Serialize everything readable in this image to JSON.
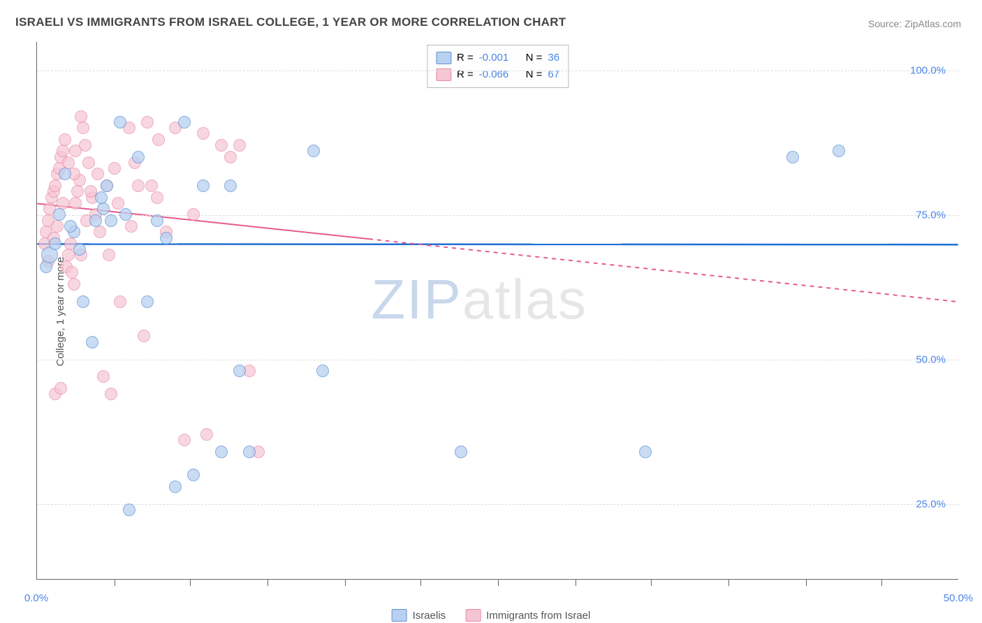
{
  "title": "ISRAELI VS IMMIGRANTS FROM ISRAEL COLLEGE, 1 YEAR OR MORE CORRELATION CHART",
  "source_label": "Source: ",
  "source_name": "ZipAtlas.com",
  "ylabel": "College, 1 year or more",
  "watermark_a": "ZIP",
  "watermark_b": "atlas",
  "chart": {
    "type": "scatter",
    "background_color": "#ffffff",
    "grid_color": "#dddddd",
    "grid_dash": "4,4",
    "xlim": [
      0,
      50
    ],
    "ylim": [
      12,
      105
    ],
    "x_ticks": [
      0,
      50
    ],
    "x_tick_labels": [
      "0.0%",
      "50.0%"
    ],
    "x_minor_ticks": [
      4.2,
      8.3,
      12.5,
      16.7,
      20.8,
      25.0,
      29.2,
      33.3,
      37.5,
      41.7,
      45.8
    ],
    "y_ticks": [
      25,
      50,
      75,
      100
    ],
    "y_tick_labels": [
      "25.0%",
      "50.0%",
      "75.0%",
      "100.0%"
    ],
    "point_radius": 9,
    "point_stroke_width": 1.5,
    "series": [
      {
        "key": "israelis",
        "label": "Israelis",
        "fill": "#b9d1f0",
        "stroke": "#5e93d6",
        "opacity": 0.75,
        "r_value": "-0.001",
        "n_value": "36",
        "trend": {
          "y_at_xmin": 70.0,
          "y_at_xmax": 69.9,
          "color": "#1f6fd4",
          "width": 2.5,
          "dash_after_x": null
        },
        "points": [
          {
            "x": 0.5,
            "y": 66
          },
          {
            "x": 0.7,
            "y": 68,
            "r": 12
          },
          {
            "x": 1.0,
            "y": 70
          },
          {
            "x": 1.2,
            "y": 75
          },
          {
            "x": 1.5,
            "y": 82
          },
          {
            "x": 2.0,
            "y": 72
          },
          {
            "x": 2.3,
            "y": 69
          },
          {
            "x": 2.5,
            "y": 60
          },
          {
            "x": 3.0,
            "y": 53
          },
          {
            "x": 3.2,
            "y": 74
          },
          {
            "x": 3.5,
            "y": 78
          },
          {
            "x": 3.8,
            "y": 80
          },
          {
            "x": 4.0,
            "y": 74
          },
          {
            "x": 4.5,
            "y": 91
          },
          {
            "x": 4.8,
            "y": 75
          },
          {
            "x": 5.0,
            "y": 24
          },
          {
            "x": 5.5,
            "y": 85
          },
          {
            "x": 6.0,
            "y": 60
          },
          {
            "x": 6.5,
            "y": 74
          },
          {
            "x": 7.0,
            "y": 71
          },
          {
            "x": 7.5,
            "y": 28
          },
          {
            "x": 8.0,
            "y": 91
          },
          {
            "x": 8.5,
            "y": 30
          },
          {
            "x": 9.0,
            "y": 80
          },
          {
            "x": 10.0,
            "y": 34
          },
          {
            "x": 10.5,
            "y": 80
          },
          {
            "x": 11.0,
            "y": 48
          },
          {
            "x": 11.5,
            "y": 34
          },
          {
            "x": 15.0,
            "y": 86
          },
          {
            "x": 15.5,
            "y": 48
          },
          {
            "x": 23.0,
            "y": 34
          },
          {
            "x": 33.0,
            "y": 34
          },
          {
            "x": 41.0,
            "y": 85
          },
          {
            "x": 43.5,
            "y": 86
          },
          {
            "x": 3.6,
            "y": 76
          },
          {
            "x": 1.8,
            "y": 73
          }
        ]
      },
      {
        "key": "immigrants",
        "label": "Immigrants from Israel",
        "fill": "#f6c5d3",
        "stroke": "#e889a6",
        "opacity": 0.7,
        "r_value": "-0.066",
        "n_value": "67",
        "trend": {
          "y_at_xmin": 77.0,
          "y_at_xmax": 60.0,
          "color": "#e75a8c",
          "width": 2,
          "dash_after_x": 18
        },
        "points": [
          {
            "x": 0.4,
            "y": 70
          },
          {
            "x": 0.5,
            "y": 72
          },
          {
            "x": 0.6,
            "y": 74
          },
          {
            "x": 0.7,
            "y": 76
          },
          {
            "x": 0.8,
            "y": 78
          },
          {
            "x": 0.9,
            "y": 79
          },
          {
            "x": 1.0,
            "y": 80
          },
          {
            "x": 1.1,
            "y": 82
          },
          {
            "x": 1.2,
            "y": 83
          },
          {
            "x": 1.3,
            "y": 85
          },
          {
            "x": 1.4,
            "y": 86
          },
          {
            "x": 1.5,
            "y": 88
          },
          {
            "x": 1.6,
            "y": 66
          },
          {
            "x": 1.7,
            "y": 68
          },
          {
            "x": 1.8,
            "y": 70
          },
          {
            "x": 1.9,
            "y": 65
          },
          {
            "x": 2.0,
            "y": 63
          },
          {
            "x": 2.1,
            "y": 77
          },
          {
            "x": 2.2,
            "y": 79
          },
          {
            "x": 2.3,
            "y": 81
          },
          {
            "x": 2.4,
            "y": 92
          },
          {
            "x": 2.5,
            "y": 90
          },
          {
            "x": 2.6,
            "y": 87
          },
          {
            "x": 2.8,
            "y": 84
          },
          {
            "x": 3.0,
            "y": 78
          },
          {
            "x": 3.2,
            "y": 75
          },
          {
            "x": 3.4,
            "y": 72
          },
          {
            "x": 3.6,
            "y": 47
          },
          {
            "x": 3.8,
            "y": 80
          },
          {
            "x": 4.0,
            "y": 44
          },
          {
            "x": 4.2,
            "y": 83
          },
          {
            "x": 4.5,
            "y": 60
          },
          {
            "x": 5.0,
            "y": 90
          },
          {
            "x": 5.3,
            "y": 84
          },
          {
            "x": 5.5,
            "y": 80
          },
          {
            "x": 5.8,
            "y": 54
          },
          {
            "x": 6.0,
            "y": 91
          },
          {
            "x": 6.2,
            "y": 80
          },
          {
            "x": 6.5,
            "y": 78
          },
          {
            "x": 6.6,
            "y": 88
          },
          {
            "x": 7.0,
            "y": 72
          },
          {
            "x": 7.5,
            "y": 90
          },
          {
            "x": 8.0,
            "y": 36
          },
          {
            "x": 8.5,
            "y": 75
          },
          {
            "x": 9.0,
            "y": 89
          },
          {
            "x": 9.2,
            "y": 37
          },
          {
            "x": 10.0,
            "y": 87
          },
          {
            "x": 10.5,
            "y": 85
          },
          {
            "x": 11.0,
            "y": 87
          },
          {
            "x": 11.5,
            "y": 48
          },
          {
            "x": 12.0,
            "y": 34
          },
          {
            "x": 1.0,
            "y": 44
          },
          {
            "x": 1.3,
            "y": 45
          },
          {
            "x": 2.0,
            "y": 82
          },
          {
            "x": 2.4,
            "y": 68
          },
          {
            "x": 2.7,
            "y": 74
          },
          {
            "x": 0.6,
            "y": 67
          },
          {
            "x": 0.9,
            "y": 71
          },
          {
            "x": 1.1,
            "y": 73
          },
          {
            "x": 1.4,
            "y": 77
          },
          {
            "x": 1.7,
            "y": 84
          },
          {
            "x": 2.1,
            "y": 86
          },
          {
            "x": 2.9,
            "y": 79
          },
          {
            "x": 3.3,
            "y": 82
          },
          {
            "x": 3.9,
            "y": 68
          },
          {
            "x": 4.4,
            "y": 77
          },
          {
            "x": 5.1,
            "y": 73
          }
        ]
      }
    ],
    "legend_top": {
      "r_label": "R =",
      "n_label": "N ="
    }
  }
}
